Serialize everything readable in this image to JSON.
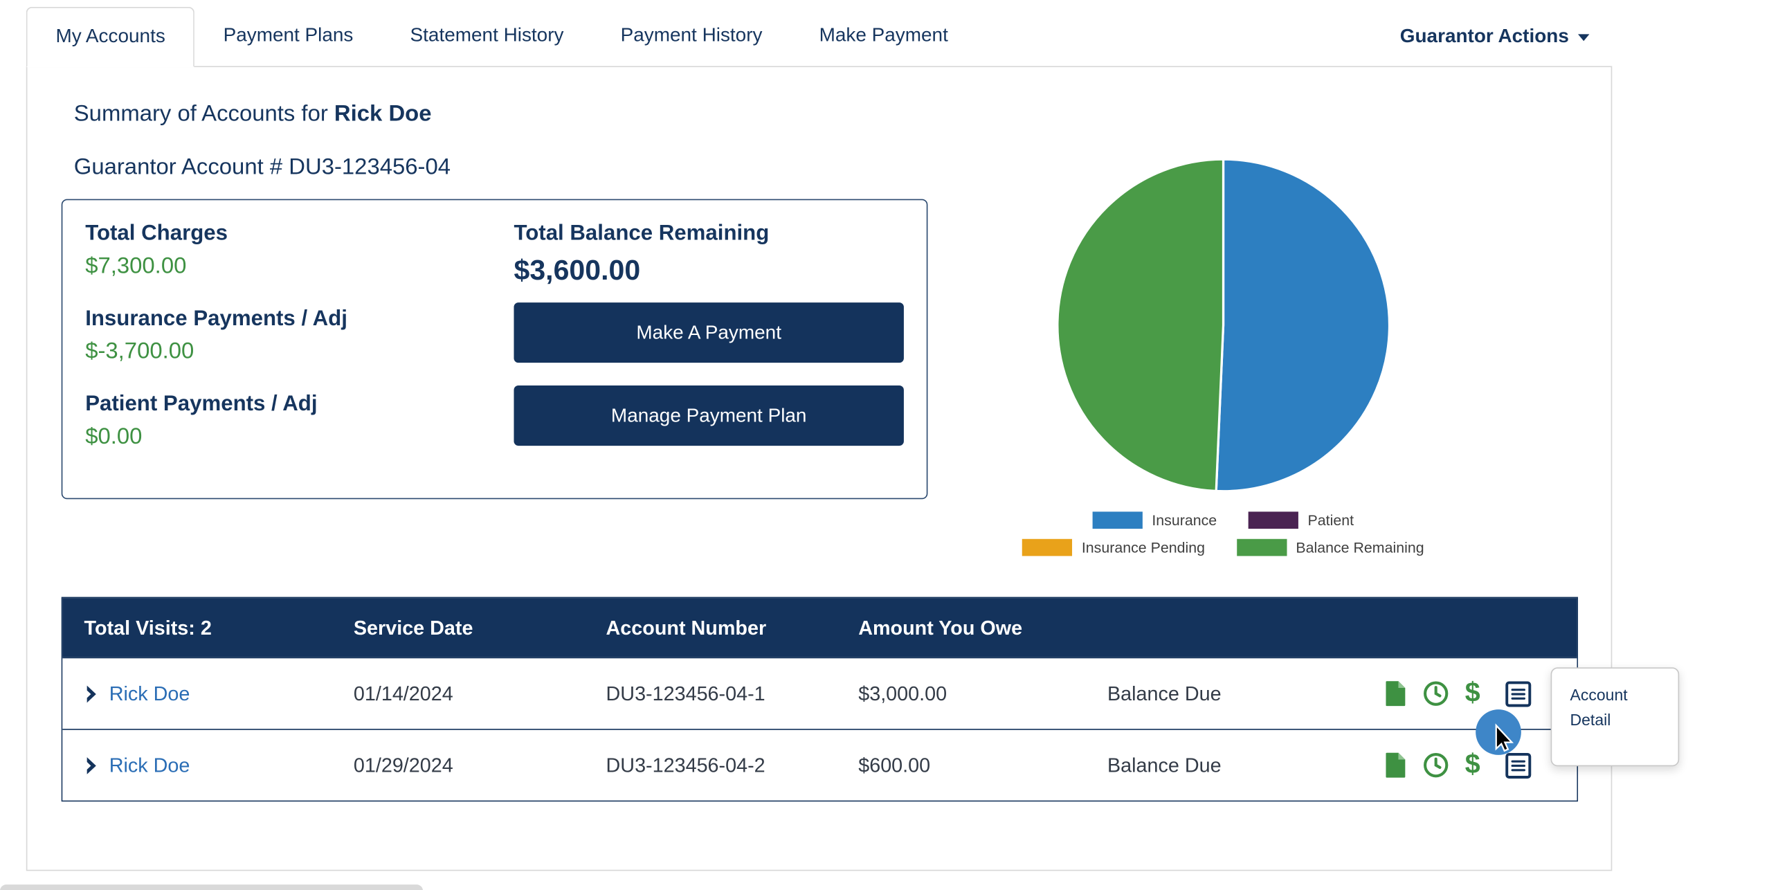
{
  "tabs": {
    "items": [
      {
        "label": "My Accounts",
        "active": true
      },
      {
        "label": "Payment Plans",
        "active": false
      },
      {
        "label": "Statement History",
        "active": false
      },
      {
        "label": "Payment History",
        "active": false
      },
      {
        "label": "Make Payment",
        "active": false
      }
    ],
    "guarantor_actions_label": "Guarantor Actions"
  },
  "header": {
    "summary_prefix": "Summary of Accounts for ",
    "patient_name": "Rick Doe",
    "guarantor_account_label": "Guarantor Account # DU3-123456-04"
  },
  "summary": {
    "total_charges_label": "Total Charges",
    "total_charges_value": "$7,300.00",
    "insurance_payments_label": "Insurance Payments / Adj",
    "insurance_payments_value": "$-3,700.00",
    "patient_payments_label": "Patient Payments / Adj",
    "patient_payments_value": "$0.00",
    "total_balance_label": "Total Balance Remaining",
    "total_balance_value": "$3,600.00",
    "make_payment_button": "Make A Payment",
    "manage_plan_button": "Manage Payment Plan"
  },
  "chart_data": {
    "type": "pie",
    "title": "",
    "legend_position": "bottom",
    "slices": [
      {
        "label": "Insurance",
        "value": 3700,
        "color": "#2d7fc1"
      },
      {
        "label": "Patient",
        "value": 0,
        "color": "#4a2352"
      },
      {
        "label": "Insurance Pending",
        "value": 0,
        "color": "#e9a21a"
      },
      {
        "label": "Balance Remaining",
        "value": 3600,
        "color": "#4a9b47"
      }
    ]
  },
  "table": {
    "headers": [
      "Total Visits: 2",
      "Service Date",
      "Account Number",
      "Amount You Owe"
    ],
    "rows": [
      {
        "name": "Rick Doe",
        "service_date": "01/14/2024",
        "account_number": "DU3-123456-04-1",
        "amount": "$3,000.00",
        "status": "Balance Due"
      },
      {
        "name": "Rick Doe",
        "service_date": "01/29/2024",
        "account_number": "DU3-123456-04-2",
        "amount": "$600.00",
        "status": "Balance Due"
      }
    ]
  },
  "icons": {
    "dollar_glyph": "$"
  },
  "tooltip": {
    "text": "Account Detail"
  },
  "colors": {
    "navy": "#14335c",
    "text_navy": "#16355e",
    "money_green": "#3e9142",
    "link_blue": "#2a6db5",
    "pie_blue": "#2d7fc1",
    "pie_purple": "#4a2352",
    "pie_orange": "#e9a21a",
    "pie_green": "#4a9b47",
    "click_highlight_blue": "#3e86c8"
  }
}
